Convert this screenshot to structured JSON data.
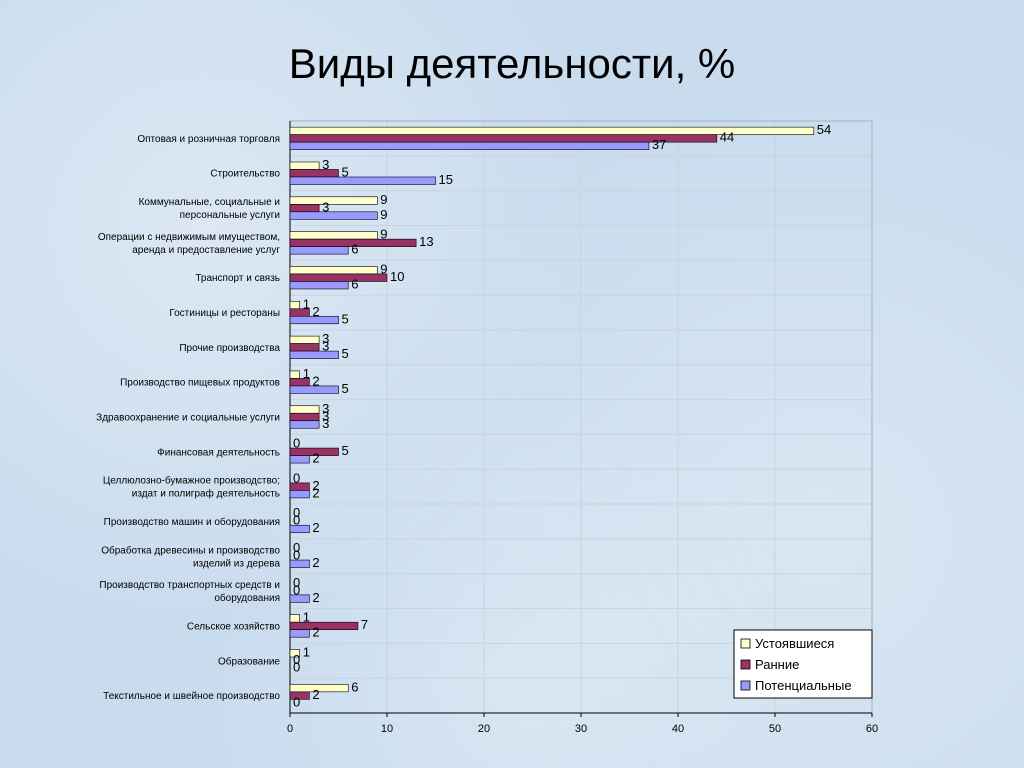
{
  "slide": {
    "title": "Виды деятельности, %"
  },
  "chart_data": {
    "type": "bar",
    "orientation": "horizontal",
    "title": "",
    "xlabel": "",
    "ylabel": "",
    "xlim": [
      0,
      60
    ],
    "xticks": [
      0,
      10,
      20,
      30,
      40,
      50,
      60
    ],
    "grid": true,
    "legend_position": "bottom-right",
    "categories": [
      [
        "Оптовая и розничная торговля"
      ],
      [
        "Строительство"
      ],
      [
        "Коммунальные, социальные и",
        "персональные услуги"
      ],
      [
        "Операции с недвижимым имуществом,",
        "аренда и предоставление услуг"
      ],
      [
        "Транспорт и связь"
      ],
      [
        "Гостиницы и рестораны"
      ],
      [
        "Прочие производства"
      ],
      [
        "Производство пищевых продуктов"
      ],
      [
        "Здравоохранение и социальные услуги"
      ],
      [
        "Финансовая деятельность"
      ],
      [
        "Целлюлозно-бумажное производство;",
        "издат и полиграф деятельность"
      ],
      [
        "Производство машин и оборудования"
      ],
      [
        "Обработка древесины и производство",
        "изделий из дерева"
      ],
      [
        "Производство транспортных средств и",
        "оборудования"
      ],
      [
        "Сельское хозяйство"
      ],
      [
        "Образование"
      ],
      [
        "Текстильное и швейное производство"
      ]
    ],
    "series": [
      {
        "name": "Устоявшиеся",
        "color": "#ffffcc",
        "values": [
          54,
          3,
          9,
          9,
          9,
          1,
          3,
          1,
          3,
          0,
          0,
          0,
          0,
          0,
          1,
          1,
          6
        ]
      },
      {
        "name": "Ранние",
        "color": "#993366",
        "values": [
          44,
          5,
          3,
          13,
          10,
          2,
          3,
          2,
          3,
          5,
          2,
          0,
          0,
          0,
          7,
          0,
          2
        ]
      },
      {
        "name": "Потенциальные",
        "color": "#9999ff",
        "values": [
          37,
          15,
          9,
          6,
          6,
          5,
          5,
          5,
          3,
          2,
          2,
          2,
          2,
          2,
          2,
          0,
          0
        ]
      }
    ]
  }
}
